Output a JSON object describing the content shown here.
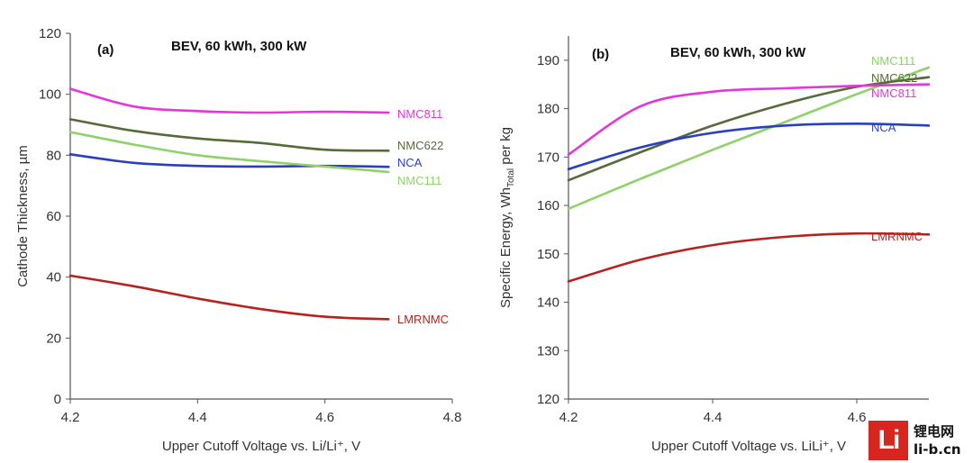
{
  "chart_data": [
    {
      "id": "a",
      "type": "line",
      "panel_label": "(a)",
      "title": "BEV, 60 kWh, 300 kW",
      "xlabel": "Upper Cutoff Voltage vs. Li/Li⁺, V",
      "ylabel": "Cathode Thickness, µm",
      "xlim": [
        4.2,
        4.8
      ],
      "ylim": [
        0,
        120
      ],
      "xticks": [
        "4.2",
        "4.4",
        "4.6",
        "4.8"
      ],
      "yticks": [
        "0",
        "20",
        "40",
        "60",
        "80",
        "100",
        "120"
      ],
      "x": [
        4.2,
        4.3,
        4.4,
        4.5,
        4.6,
        4.7
      ],
      "series": [
        {
          "name": "NMC811",
          "color": "#e636d8",
          "values": [
            101.8,
            96.0,
            94.5,
            94.0,
            94.3,
            94.0
          ]
        },
        {
          "name": "NMC622",
          "color": "#556b3a",
          "values": [
            91.8,
            88.0,
            85.5,
            84.0,
            81.8,
            81.5
          ]
        },
        {
          "name": "NCA",
          "color": "#2a3fbf",
          "values": [
            80.3,
            77.5,
            76.5,
            76.3,
            76.5,
            76.2
          ]
        },
        {
          "name": "NMC111",
          "color": "#8fd16a",
          "values": [
            87.6,
            83.5,
            80.0,
            78.0,
            76.3,
            74.5
          ]
        },
        {
          "name": "LMRNMC",
          "color": "#b5231f",
          "values": [
            40.5,
            37.0,
            33.0,
            29.5,
            27.0,
            26.2
          ]
        }
      ]
    },
    {
      "id": "b",
      "type": "line",
      "panel_label": "(b)",
      "title": "BEV, 60 kWh, 300 kW",
      "xlabel": "Upper Cutoff Voltage vs. LiLi⁺, V",
      "ylabel_main": "Specific Energy, Wh",
      "ylabel_sub": "Total",
      "ylabel_tail": " per kg",
      "xlim": [
        4.2,
        4.7
      ],
      "ylim": [
        120,
        195
      ],
      "xticks": [
        "4.2",
        "4.4",
        "4.6"
      ],
      "yticks": [
        "120",
        "130",
        "140",
        "150",
        "160",
        "170",
        "180",
        "190"
      ],
      "x": [
        4.2,
        4.3,
        4.4,
        4.5,
        4.6,
        4.7
      ],
      "series": [
        {
          "name": "NMC111",
          "color": "#8fd16a",
          "values": [
            159.3,
            165.5,
            171.5,
            177.2,
            183.0,
            188.5
          ]
        },
        {
          "name": "NMC622",
          "color": "#556b3a",
          "values": [
            165.2,
            171.0,
            176.5,
            181.0,
            184.5,
            186.5
          ]
        },
        {
          "name": "NMC811",
          "color": "#e636d8",
          "values": [
            170.5,
            180.5,
            183.5,
            184.2,
            184.7,
            185.0
          ]
        },
        {
          "name": "NCA",
          "color": "#2a3fbf",
          "values": [
            167.5,
            172.0,
            175.0,
            176.5,
            176.9,
            176.5
          ]
        },
        {
          "name": "LMRNMC",
          "color": "#b5231f",
          "values": [
            144.3,
            148.8,
            151.8,
            153.5,
            154.2,
            154.0
          ]
        }
      ]
    }
  ],
  "watermark": {
    "logo": "Li",
    "line1": "锂电网",
    "line2": "li-b.cn"
  }
}
